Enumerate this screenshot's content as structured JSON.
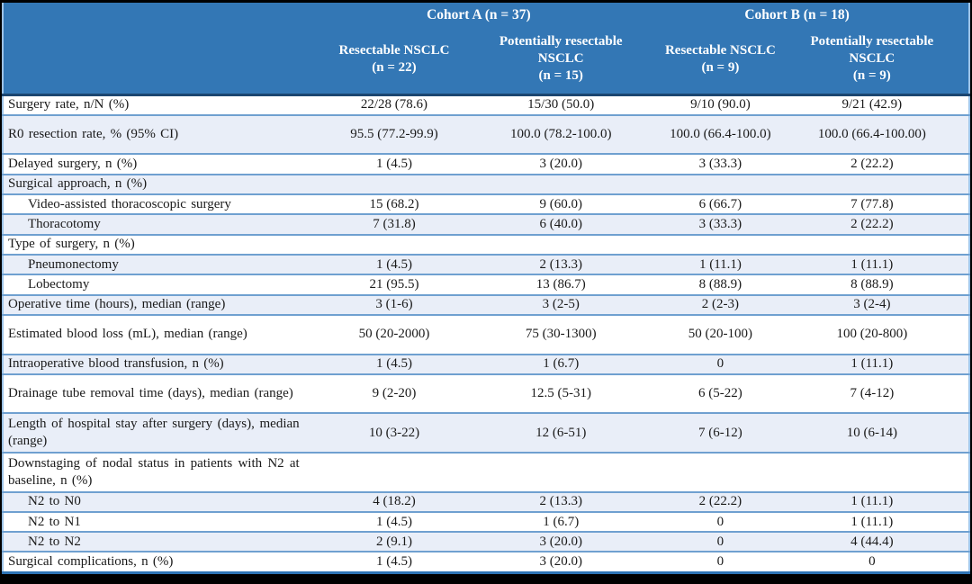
{
  "table": {
    "header": {
      "groups": [
        {
          "label": "Cohort A (n = 37)"
        },
        {
          "label": "Cohort B (n = 18)"
        }
      ],
      "columns": [
        {
          "name": "Resectable NSCLC",
          "n": "(n = 22)"
        },
        {
          "name": "Potentially resectable NSCLC",
          "n": "(n = 15)"
        },
        {
          "name": "Resectable NSCLC",
          "n": "(n = 9)"
        },
        {
          "name": "Potentially resectable NSCLC",
          "n": "(n = 9)"
        }
      ]
    },
    "rows": [
      {
        "label": "Surgery rate, n/N (%)",
        "indent": false,
        "tall": false,
        "values": [
          "22/28 (78.6)",
          "15/30 (50.0)",
          "9/10 (90.0)",
          "9/21 (42.9)"
        ]
      },
      {
        "label": "R0 resection rate, % (95% CI)",
        "indent": false,
        "tall": true,
        "values": [
          "95.5 (77.2-99.9)",
          "100.0 (78.2-100.0)",
          "100.0 (66.4-100.0)",
          "100.0 (66.4-100.00)"
        ]
      },
      {
        "label": "Delayed surgery, n (%)",
        "indent": false,
        "tall": false,
        "values": [
          "1 (4.5)",
          "3 (20.0)",
          "3 (33.3)",
          "2 (22.2)"
        ]
      },
      {
        "label": "Surgical approach, n (%)",
        "indent": false,
        "tall": false,
        "values": [
          "",
          "",
          "",
          ""
        ]
      },
      {
        "label": "Video-assisted thoracoscopic surgery",
        "indent": true,
        "tall": false,
        "values": [
          "15 (68.2)",
          "9 (60.0)",
          "6 (66.7)",
          "7 (77.8)"
        ]
      },
      {
        "label": "Thoracotomy",
        "indent": true,
        "tall": false,
        "values": [
          "7 (31.8)",
          "6 (40.0)",
          "3 (33.3)",
          "2 (22.2)"
        ]
      },
      {
        "label": "Type of surgery, n (%)",
        "indent": false,
        "tall": false,
        "values": [
          "",
          "",
          "",
          ""
        ]
      },
      {
        "label": "Pneumonectomy",
        "indent": true,
        "tall": false,
        "values": [
          "1 (4.5)",
          "2 (13.3)",
          "1 (11.1)",
          "1 (11.1)"
        ]
      },
      {
        "label": "Lobectomy",
        "indent": true,
        "tall": false,
        "values": [
          "21 (95.5)",
          "13 (86.7)",
          "8 (88.9)",
          "8 (88.9)"
        ]
      },
      {
        "label": "Operative time (hours), median (range)",
        "indent": false,
        "tall": false,
        "values": [
          "3 (1-6)",
          "3 (2-5)",
          "2 (2-3)",
          "3 (2-4)"
        ]
      },
      {
        "label": "Estimated blood loss (mL), median (range)",
        "indent": false,
        "tall": true,
        "values": [
          "50 (20-2000)",
          "75 (30-1300)",
          "50 (20-100)",
          "100 (20-800)"
        ]
      },
      {
        "label": "Intraoperative blood transfusion, n (%)",
        "indent": false,
        "tall": false,
        "values": [
          "1 (4.5)",
          "1 (6.7)",
          "0",
          "1 (11.1)"
        ]
      },
      {
        "label": "Drainage tube removal time (days), median (range)",
        "indent": false,
        "tall": true,
        "values": [
          "9 (2-20)",
          "12.5 (5-31)",
          "6 (5-22)",
          "7 (4-12)"
        ]
      },
      {
        "label": "Length of hospital stay after surgery (days), median (range)",
        "indent": false,
        "tall": true,
        "values": [
          "10 (3-22)",
          "12 (6-51)",
          "7 (6-12)",
          "10 (6-14)"
        ]
      },
      {
        "label": "Downstaging of nodal status in patients with N2 at baseline, n (%)",
        "indent": false,
        "tall": true,
        "values": [
          "",
          "",
          "",
          ""
        ]
      },
      {
        "label": "N2 to N0",
        "indent": true,
        "tall": false,
        "values": [
          "4 (18.2)",
          "2 (13.3)",
          "2 (22.2)",
          "1 (11.1)"
        ]
      },
      {
        "label": "N2 to N1",
        "indent": true,
        "tall": false,
        "values": [
          "1 (4.5)",
          "1 (6.7)",
          "0",
          "1 (11.1)"
        ]
      },
      {
        "label": "N2 to N2",
        "indent": true,
        "tall": false,
        "values": [
          "2 (9.1)",
          "3 (20.0)",
          "0",
          "4 (44.4)"
        ]
      },
      {
        "label": "Surgical complications, n (%)",
        "indent": false,
        "tall": false,
        "values": [
          "1 (4.5)",
          "3 (20.0)",
          "0",
          "0"
        ]
      }
    ]
  },
  "colors": {
    "header_bg": "#3377B5",
    "header_text": "#FFFFFF",
    "band_bg": "#E9EEF8",
    "row_separator": "#6FA0D0",
    "header_underline": "#1B4670",
    "bottom_rule": "#2E74B5",
    "frame": "#000000",
    "body_text": "#1A1A1A"
  }
}
